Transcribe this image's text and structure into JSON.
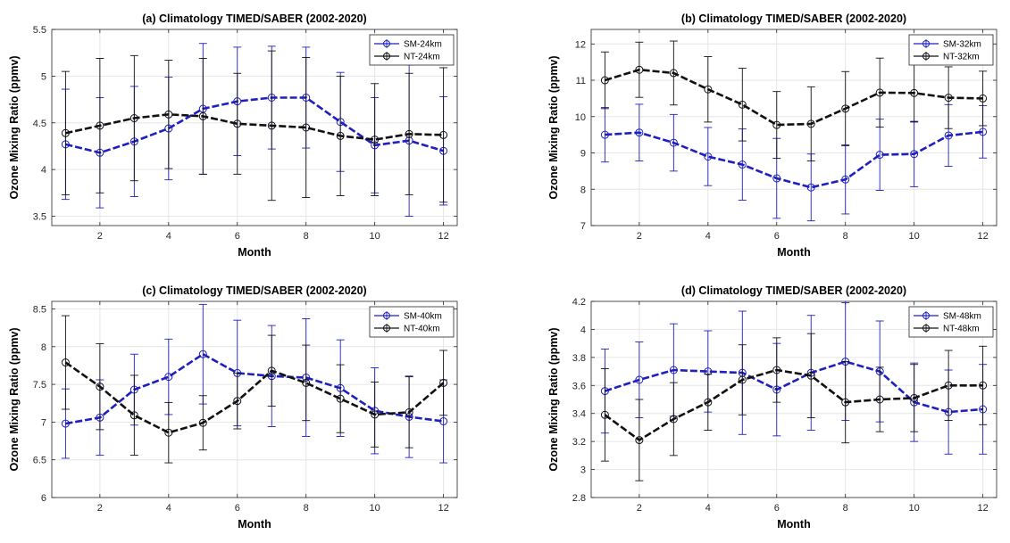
{
  "figure": {
    "colors": {
      "sm": "#1f1fbf",
      "nt": "#111111",
      "grid": "#e6e6e6",
      "axis": "#262626",
      "background": "#ffffff"
    }
  },
  "chart_data": [
    {
      "type": "line",
      "title": "(a) Climatology TIMED/SABER (2002-2020)",
      "xlabel": "Month",
      "ylabel": "Ozone Mixing Ratio (ppmv)",
      "xlim": [
        0.6,
        12.4
      ],
      "ylim": [
        3.4,
        5.5
      ],
      "xticks": [
        2,
        4,
        6,
        8,
        10,
        12
      ],
      "xtick_labels": [
        "2",
        "4",
        "6",
        "8",
        "10",
        "12"
      ],
      "yticks": [
        3.5,
        4,
        4.5,
        5,
        5.5
      ],
      "ytick_labels": [
        "3.5",
        "4",
        "4.5",
        "5",
        "5.5"
      ],
      "grid": true,
      "legend": "top-right",
      "x": [
        1,
        2,
        3,
        4,
        5,
        6,
        7,
        8,
        9,
        10,
        11,
        12
      ],
      "series": [
        {
          "name": "SM-24km",
          "color": "sm",
          "values": [
            4.27,
            4.18,
            4.3,
            4.44,
            4.65,
            4.73,
            4.77,
            4.77,
            4.51,
            4.26,
            4.31,
            4.2
          ],
          "error": [
            0.59,
            0.59,
            0.59,
            0.55,
            0.7,
            0.58,
            0.55,
            0.54,
            0.53,
            0.51,
            0.81,
            0.58
          ]
        },
        {
          "name": "NT-24km",
          "color": "nt",
          "values": [
            4.39,
            4.47,
            4.55,
            4.59,
            4.57,
            4.49,
            4.47,
            4.45,
            4.36,
            4.32,
            4.38,
            4.37
          ],
          "error": [
            0.66,
            0.72,
            0.67,
            0.58,
            0.62,
            0.54,
            0.8,
            0.75,
            0.64,
            0.6,
            0.65,
            0.72
          ]
        }
      ]
    },
    {
      "type": "line",
      "title": "(b) Climatology TIMED/SABER (2002-2020)",
      "xlabel": "Month",
      "ylabel": "Ozone Mixing Ratio (ppmv)",
      "xlim": [
        0.6,
        12.4
      ],
      "ylim": [
        7,
        12.4
      ],
      "xticks": [
        2,
        4,
        6,
        8,
        10,
        12
      ],
      "xtick_labels": [
        "2",
        "4",
        "6",
        "8",
        "10",
        "12"
      ],
      "yticks": [
        7,
        8,
        9,
        10,
        11,
        12
      ],
      "ytick_labels": [
        "7",
        "8",
        "9",
        "10",
        "11",
        "12"
      ],
      "grid": true,
      "legend": "top-right",
      "x": [
        1,
        2,
        3,
        4,
        5,
        6,
        7,
        8,
        9,
        10,
        11,
        12
      ],
      "series": [
        {
          "name": "SM-32km",
          "color": "sm",
          "values": [
            9.5,
            9.56,
            9.28,
            8.9,
            8.68,
            8.3,
            8.05,
            8.27,
            8.95,
            8.97,
            9.48,
            9.58
          ],
          "error": [
            0.75,
            0.78,
            0.78,
            0.8,
            0.98,
            1.1,
            0.92,
            0.95,
            0.98,
            0.9,
            0.85,
            0.72
          ]
        },
        {
          "name": "NT-32km",
          "color": "nt",
          "values": [
            11.0,
            11.29,
            11.2,
            10.75,
            10.33,
            9.77,
            9.8,
            10.22,
            10.66,
            10.65,
            10.52,
            10.5
          ],
          "error": [
            0.78,
            0.76,
            0.88,
            0.9,
            1.0,
            0.92,
            1.02,
            1.02,
            0.95,
            0.8,
            0.85,
            0.75
          ]
        }
      ]
    },
    {
      "type": "line",
      "title": "(c) Climatology TIMED/SABER (2002-2020)",
      "xlabel": "Month",
      "ylabel": "Ozone Mixing Ratio (ppmv)",
      "xlim": [
        0.6,
        12.4
      ],
      "ylim": [
        6,
        8.6
      ],
      "xticks": [
        2,
        4,
        6,
        8,
        10,
        12
      ],
      "xtick_labels": [
        "2",
        "4",
        "6",
        "8",
        "10",
        "12"
      ],
      "yticks": [
        6,
        6.5,
        7,
        7.5,
        8,
        8.5
      ],
      "ytick_labels": [
        "6",
        "6.5",
        "7",
        "7.5",
        "8",
        "8.5"
      ],
      "grid": true,
      "legend": "top-right",
      "x": [
        1,
        2,
        3,
        4,
        5,
        6,
        7,
        8,
        9,
        10,
        11,
        12
      ],
      "series": [
        {
          "name": "SM-40km",
          "color": "sm",
          "values": [
            6.98,
            7.06,
            7.43,
            7.6,
            7.9,
            7.65,
            7.61,
            7.59,
            7.45,
            7.15,
            7.07,
            7.01
          ],
          "error": [
            0.46,
            0.5,
            0.47,
            0.5,
            0.66,
            0.7,
            0.67,
            0.78,
            0.64,
            0.57,
            0.54,
            0.55
          ]
        },
        {
          "name": "NT-40km",
          "color": "nt",
          "values": [
            7.79,
            7.47,
            7.09,
            6.86,
            6.99,
            7.28,
            7.68,
            7.52,
            7.31,
            7.1,
            7.13,
            7.52
          ],
          "error": [
            0.62,
            0.57,
            0.53,
            0.4,
            0.36,
            0.37,
            0.47,
            0.5,
            0.45,
            0.43,
            0.47,
            0.43
          ]
        }
      ]
    },
    {
      "type": "line",
      "title": "(d) Climatology TIMED/SABER (2002-2020)",
      "xlabel": "Month",
      "ylabel": "Ozone Mixing Ratio (ppmv)",
      "xlim": [
        0.6,
        12.4
      ],
      "ylim": [
        2.8,
        4.2
      ],
      "xticks": [
        2,
        4,
        6,
        8,
        10,
        12
      ],
      "xtick_labels": [
        "2",
        "4",
        "6",
        "8",
        "10",
        "12"
      ],
      "yticks": [
        2.8,
        3,
        3.2,
        3.4,
        3.6,
        3.8,
        4,
        4.2
      ],
      "ytick_labels": [
        "2.8",
        "3",
        "3.2",
        "3.4",
        "3.6",
        "3.8",
        "4",
        "4.2"
      ],
      "grid": true,
      "legend": "top-right",
      "x": [
        1,
        2,
        3,
        4,
        5,
        6,
        7,
        8,
        9,
        10,
        11,
        12
      ],
      "series": [
        {
          "name": "SM-48km",
          "color": "sm",
          "values": [
            3.56,
            3.64,
            3.71,
            3.7,
            3.69,
            3.57,
            3.69,
            3.77,
            3.7,
            3.48,
            3.41,
            3.43
          ],
          "error": [
            0.3,
            0.27,
            0.33,
            0.29,
            0.44,
            0.33,
            0.41,
            0.42,
            0.36,
            0.28,
            0.3,
            0.32
          ]
        },
        {
          "name": "NT-48km",
          "color": "nt",
          "values": [
            3.39,
            3.21,
            3.36,
            3.48,
            3.64,
            3.71,
            3.67,
            3.48,
            3.5,
            3.51,
            3.6,
            3.6
          ],
          "error": [
            0.33,
            0.29,
            0.26,
            0.2,
            0.25,
            0.23,
            0.3,
            0.29,
            0.23,
            0.24,
            0.25,
            0.28
          ]
        }
      ]
    }
  ]
}
